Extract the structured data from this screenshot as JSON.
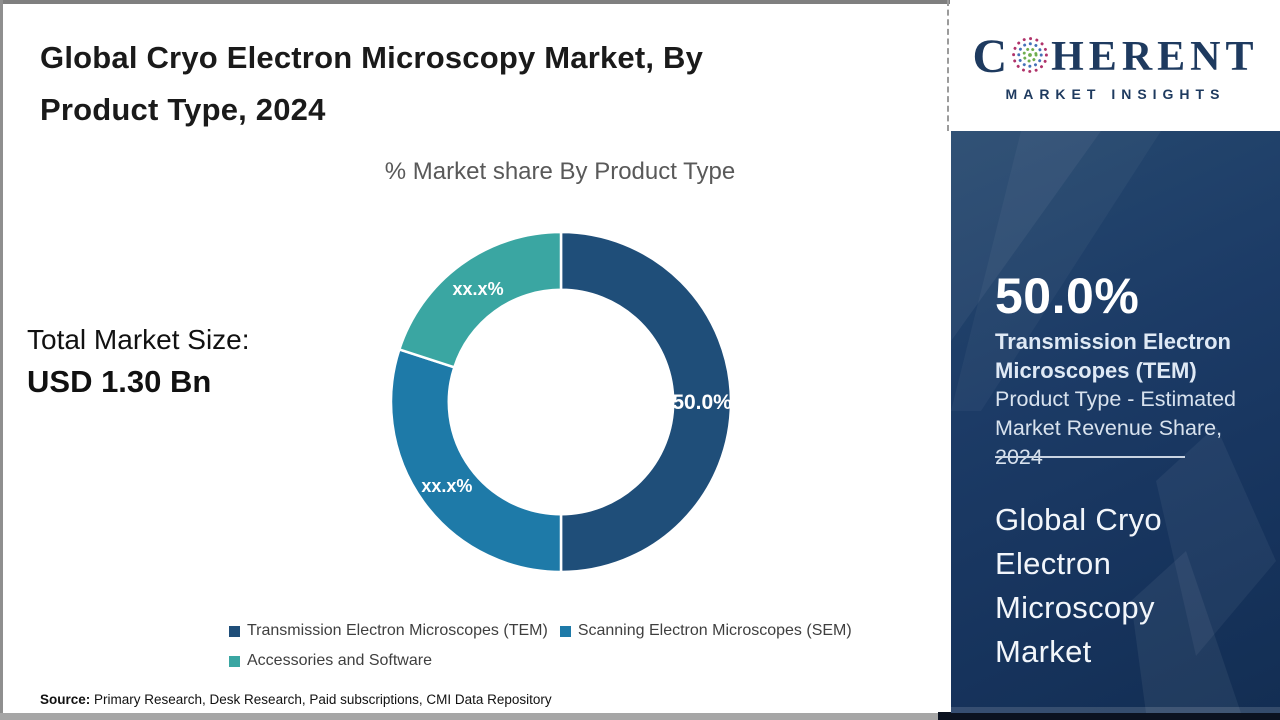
{
  "header": {
    "title_lines": [
      "Global Cryo Electron Microscopy Market, By",
      "Product Type, 2024"
    ]
  },
  "logo": {
    "name_first": "C",
    "name_rest": "HERENT",
    "tagline": "MARKET INSIGHTS"
  },
  "stats": {
    "total_label": "Total Market Size:",
    "total_value": "USD 1.30 Bn"
  },
  "chart_data": {
    "type": "pie",
    "subtype": "donut",
    "title": "% Market share By Product Type",
    "categories": [
      "Transmission Electron Microscopes (TEM)",
      "Scanning Electron Microscopes (SEM)",
      "Accessories and Software"
    ],
    "values": [
      50,
      30,
      20
    ],
    "value_labels": [
      "50.0%",
      "xx.x%",
      "xx.x%"
    ],
    "colors": [
      "#1f4e79",
      "#1e7aa8",
      "#3aa6a2"
    ],
    "hole_ratio": 0.66,
    "start_angle_deg": 0,
    "legend_position": "bottom"
  },
  "sidebar": {
    "highlight_value": "50.0%",
    "highlight_segment_lines": [
      "Transmission Electron",
      "Microscopes (TEM)"
    ],
    "highlight_caption_lines": [
      "Product Type - Estimated",
      "Market Revenue Share,",
      "2024"
    ],
    "market_name_lines": [
      "Global Cryo",
      "Electron",
      "Microscopy",
      "Market"
    ]
  },
  "footer": {
    "source_label": "Source:",
    "source_text": " Primary Research, Desk Research, Paid subscriptions, CMI Data Repository"
  }
}
